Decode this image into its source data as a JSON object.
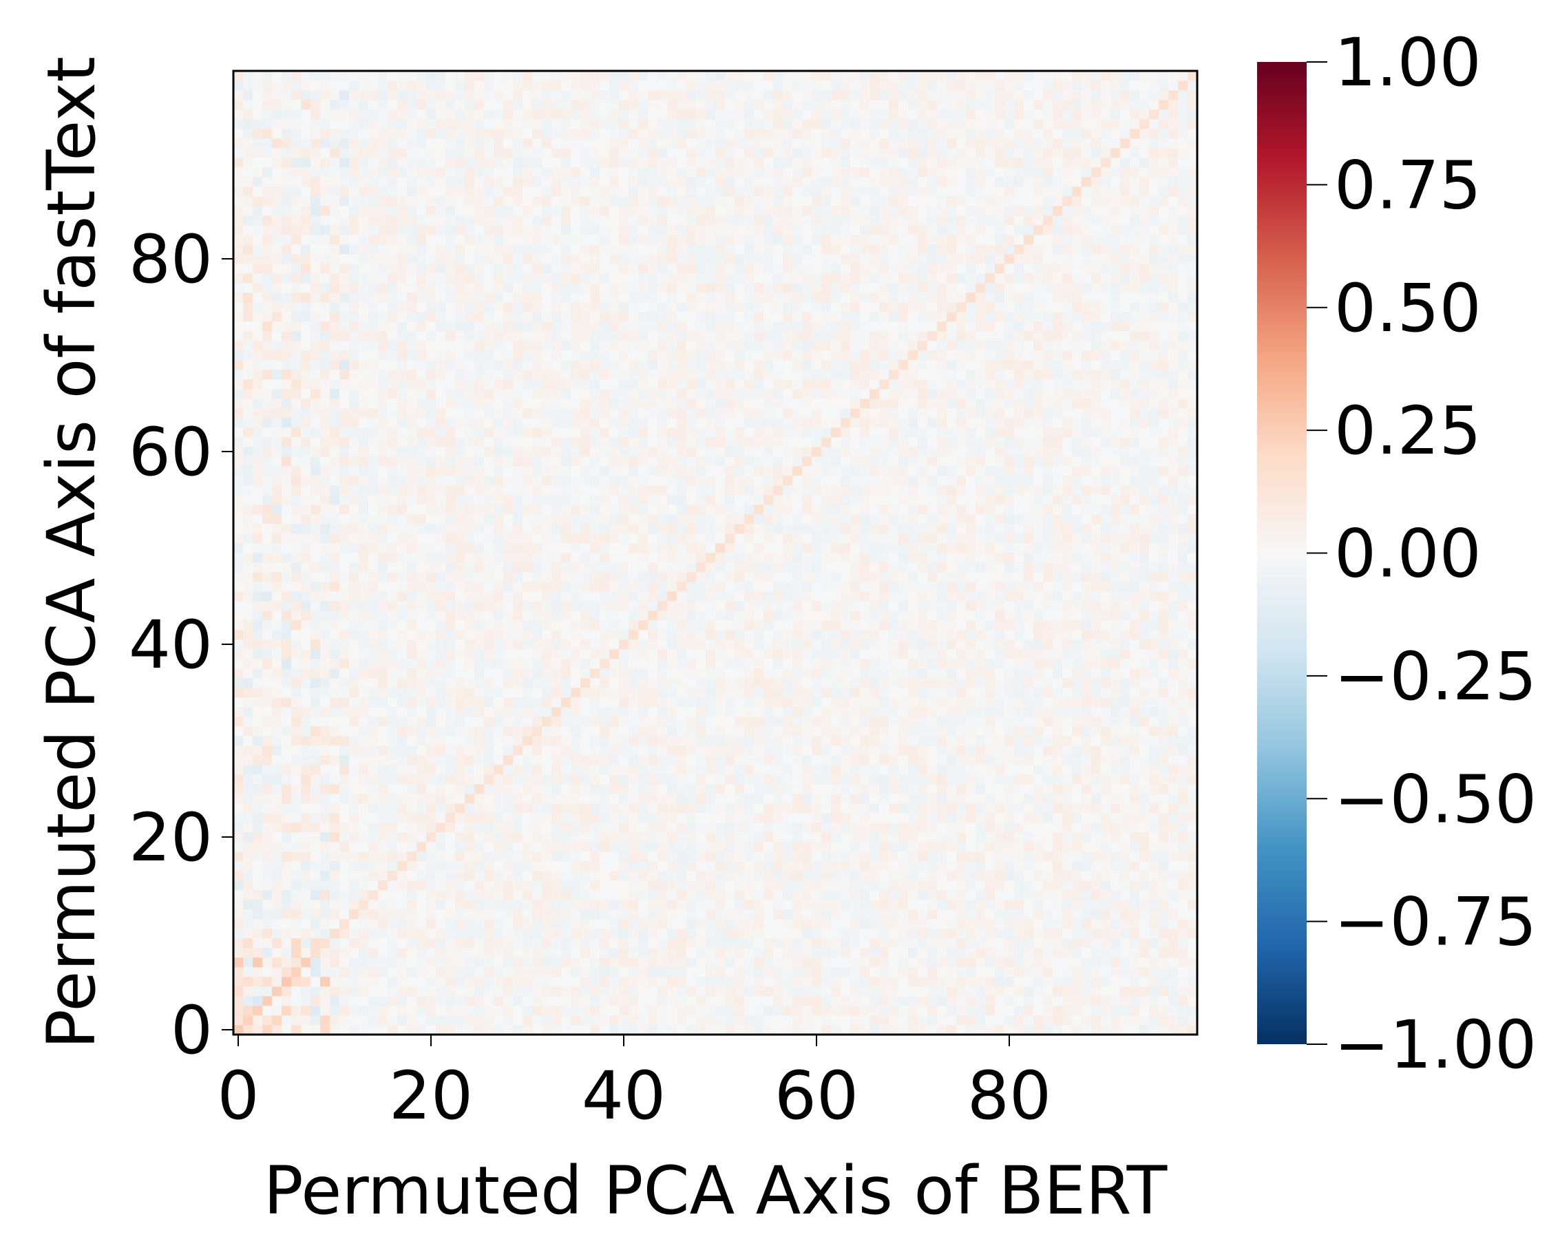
{
  "chart_data": {
    "type": "heatmap",
    "title": "",
    "xlabel": "Permuted PCA Axis of BERT",
    "ylabel": "Permuted PCA Axis of fastText",
    "n_rows": 100,
    "n_cols": 100,
    "xlim": [
      -0.5,
      99.5
    ],
    "ylim": [
      -0.5,
      99.5
    ],
    "x_ticks": [
      0,
      20,
      40,
      60,
      80
    ],
    "x_tick_labels": [
      "0",
      "20",
      "40",
      "60",
      "80"
    ],
    "y_ticks": [
      0,
      20,
      40,
      60,
      80
    ],
    "y_tick_labels": [
      "0",
      "20",
      "40",
      "60",
      "80"
    ],
    "origin": "lower-left",
    "colormap": "RdBu_r",
    "color_range": [
      -1.0,
      1.0
    ],
    "colorbar_ticks": [
      1.0,
      0.75,
      0.5,
      0.25,
      0.0,
      -0.25,
      -0.5,
      -0.75,
      -1.0
    ],
    "colorbar_tick_labels": [
      "1.00",
      "0.75",
      "0.50",
      "0.25",
      "0.00",
      "−0.25",
      "−0.50",
      "−0.75",
      "−1.00"
    ],
    "pattern_summary": {
      "diagonal_value_approx": 0.15,
      "off_diagonal_range_approx": [
        -0.2,
        0.15
      ],
      "note": "values near zero everywhere except a faint positive diagonal; stronger values in the lowest-index block near origin"
    }
  }
}
